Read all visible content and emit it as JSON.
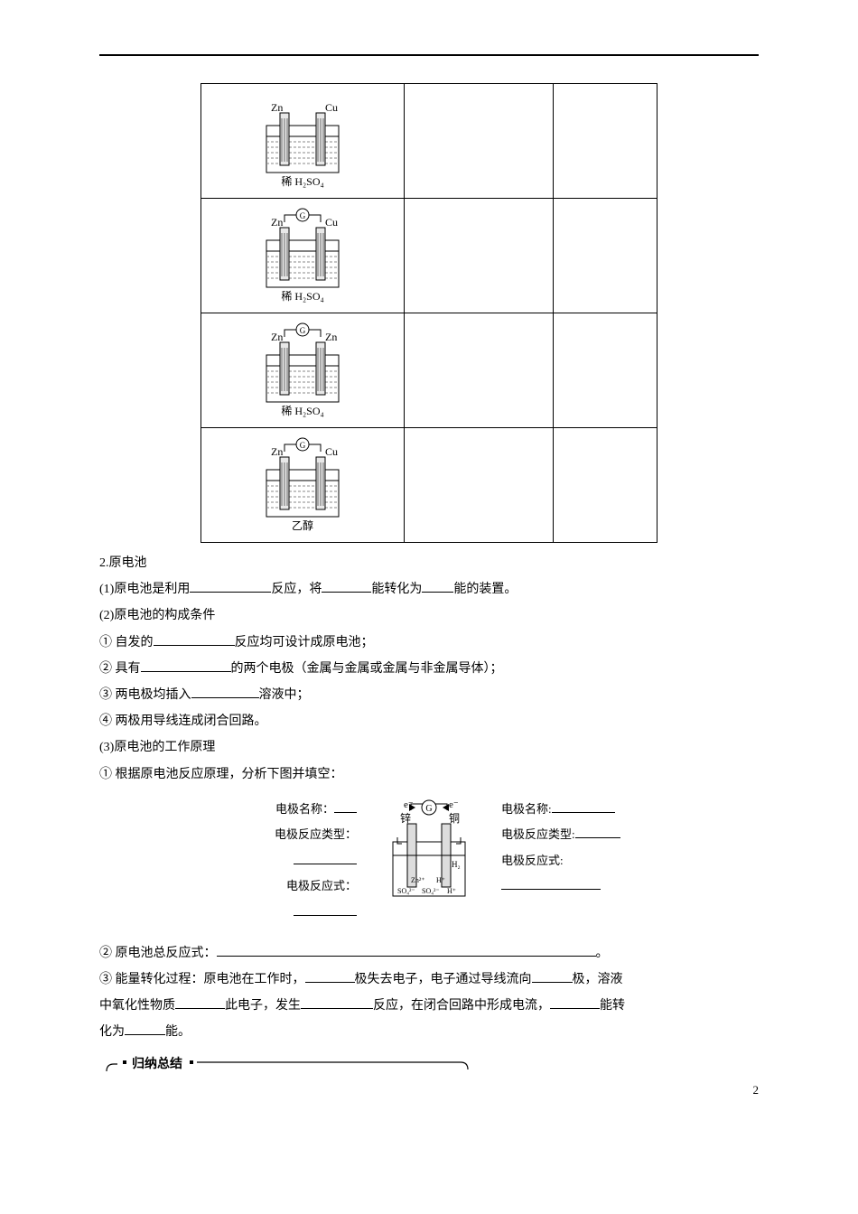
{
  "table": {
    "rows": [
      {
        "left_label": "Zn",
        "right_label": "Cu",
        "caption": "稀 H₂SO₄",
        "has_g": false
      },
      {
        "left_label": "Zn",
        "right_label": "Cu",
        "caption": "稀 H₂SO₄",
        "has_g": true
      },
      {
        "left_label": "Zn",
        "right_label": "Zn",
        "caption": "稀 H₂SO₄",
        "has_g": true
      },
      {
        "left_label": "Zn",
        "right_label": "Cu",
        "caption": "乙醇",
        "has_g": true
      }
    ]
  },
  "section2_title": "2.原电池",
  "line_1_1": "(1)原电池是利用",
  "line_1_2": "反应，将",
  "line_1_3": "能转化为",
  "line_1_4": "能的装置。",
  "line_2": "(2)原电池的构成条件",
  "line_3_1": "① 自发的",
  "line_3_2": "反应均可设计成原电池；",
  "line_4_1": "② 具有",
  "line_4_2": "的两个电极（金属与金属或金属与非金属导体）；",
  "line_5_1": "③ 两电极均插入",
  "line_5_2": "溶液中；",
  "line_6": "④ 两极用导线连成闭合回路。",
  "line_7": "(3)原电池的工作原理",
  "line_8": "① 根据原电池反应原理，分析下图并填空：",
  "electrode_left": {
    "name_label": "电极名称：",
    "type_label": "电极反应类型：",
    "eq_label": "电极反应式："
  },
  "electrode_right": {
    "name_label": "电极名称:",
    "type_label": "电极反应类型:",
    "eq_label": "电极反应式:"
  },
  "center_labels": {
    "zn": "锌",
    "cu": "铜",
    "e": "e⁻",
    "g": "G"
  },
  "line_9": "② 原电池总反应式：",
  "line_9_end": "。",
  "line_10_1": "③ 能量转化过程：原电池在工作时，",
  "line_10_2": "极失去电子，电子通过导线流向",
  "line_10_3": "极，溶液",
  "line_11_1": "中氧化性物质",
  "line_11_2": "此电子，发生",
  "line_11_3": "反应，在闭合回路中形成电流，",
  "line_11_4": "能转",
  "line_12_1": "化为",
  "line_12_2": "能。",
  "summary_title": "归纳总结",
  "page_number": "2"
}
